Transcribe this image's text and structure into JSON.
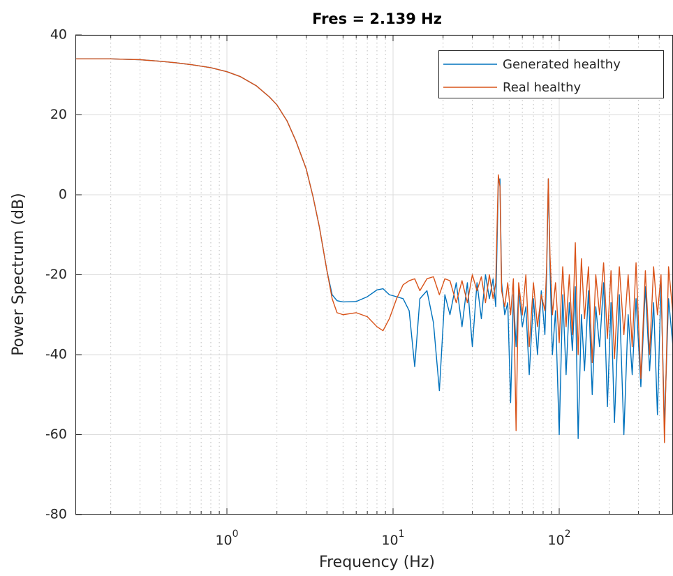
{
  "chart_data": {
    "type": "line",
    "title": "Fres = 2.139 Hz",
    "xlabel": "Frequency (Hz)",
    "ylabel": "Power Spectrum (dB)",
    "xscale": "log",
    "grid": true,
    "minor_grid": true,
    "legend_position": "northeast",
    "xlim": [
      0.1225,
      484
    ],
    "ylim": [
      -80,
      40
    ],
    "xticks": [
      {
        "value": 1,
        "label": "10",
        "exponent": "0"
      },
      {
        "value": 10,
        "label": "10",
        "exponent": "1"
      },
      {
        "value": 100,
        "label": "10",
        "exponent": "2"
      }
    ],
    "xminorticks": [
      0.2,
      0.3,
      0.4,
      0.5,
      0.6,
      0.7,
      0.8,
      0.9,
      2,
      3,
      4,
      5,
      6,
      7,
      8,
      9,
      20,
      30,
      40,
      50,
      60,
      70,
      80,
      90,
      200,
      300,
      400
    ],
    "yticks": [
      -80,
      -60,
      -40,
      -20,
      0,
      20,
      40
    ],
    "x": [
      0.1225,
      0.2,
      0.3,
      0.4,
      0.5,
      0.6,
      0.8,
      1,
      1.2,
      1.5,
      1.8,
      2,
      2.3,
      2.6,
      3,
      3.3,
      3.6,
      4,
      4.3,
      4.6,
      5,
      6,
      7,
      8,
      8.7,
      9.5,
      10.5,
      11.5,
      12.5,
      13.5,
      14.5,
      16,
      17.5,
      19,
      20.5,
      22,
      24,
      26,
      28,
      30,
      32,
      34,
      36,
      38,
      40,
      41.5,
      43,
      44,
      45,
      47,
      49,
      51,
      53,
      55,
      57,
      60,
      63,
      66,
      70,
      74,
      78,
      82,
      84,
      86,
      88,
      91,
      95,
      100,
      105,
      110,
      115,
      120,
      125,
      130,
      136,
      142,
      150,
      158,
      166,
      175,
      185,
      195,
      205,
      215,
      230,
      245,
      260,
      275,
      290,
      310,
      330,
      350,
      370,
      390,
      410,
      430,
      455,
      484
    ],
    "series": [
      {
        "name": "Generated healthy",
        "color": "#0072bd",
        "values": [
          34,
          34,
          33.8,
          33.4,
          33,
          32.6,
          31.8,
          30.8,
          29.6,
          27.3,
          24.5,
          22.5,
          18.5,
          13.5,
          6.5,
          -0.5,
          -8,
          -19,
          -25,
          -26.5,
          -26.8,
          -26.7,
          -25.5,
          -23.8,
          -23.5,
          -25,
          -25.5,
          -26,
          -29,
          -43,
          -26,
          -24,
          -32,
          -49,
          -25,
          -30,
          -22,
          -33,
          -22,
          -38,
          -22,
          -31,
          -20,
          -26,
          -21,
          -28,
          3,
          4,
          -22,
          -30,
          -27,
          -52,
          -25,
          -38,
          -24,
          -33,
          -28,
          -45,
          -26,
          -40,
          -24,
          -35,
          -20,
          4,
          -18,
          -40,
          -29,
          -60,
          -25,
          -45,
          -27,
          -39,
          -23,
          -61,
          -30,
          -44,
          -24,
          -50,
          -28,
          -38,
          -22,
          -53,
          -27,
          -57,
          -25,
          -60,
          -30,
          -45,
          -26,
          -48,
          -23,
          -44,
          -27,
          -55,
          -22,
          -58,
          -26,
          -38
        ]
      },
      {
        "name": "Real healthy",
        "color": "#d95319",
        "values": [
          34,
          34,
          33.8,
          33.4,
          33,
          32.6,
          31.8,
          30.8,
          29.6,
          27.3,
          24.5,
          22.5,
          18.5,
          13.5,
          6.5,
          -0.5,
          -8,
          -19,
          -26,
          -29.5,
          -30,
          -29.5,
          -30.5,
          -33,
          -34,
          -31,
          -26,
          -22.5,
          -21.5,
          -21,
          -24,
          -21,
          -20.5,
          -25,
          -21,
          -21.5,
          -27,
          -21.5,
          -27,
          -20,
          -24,
          -20.5,
          -27,
          -20,
          -26,
          -22,
          5,
          2,
          -24,
          -28,
          -22,
          -30,
          -21,
          -59,
          -22,
          -30,
          -20,
          -38,
          -22,
          -33,
          -25,
          -29,
          -18,
          4,
          -15,
          -30,
          -22,
          -37,
          -18,
          -33,
          -20,
          -35,
          -12,
          -40,
          -16,
          -31,
          -18,
          -42,
          -20,
          -30,
          -17,
          -36,
          -19,
          -41,
          -18,
          -35,
          -20,
          -38,
          -17,
          -46,
          -19,
          -40,
          -18,
          -30,
          -20,
          -62,
          -18,
          -30
        ]
      }
    ]
  }
}
